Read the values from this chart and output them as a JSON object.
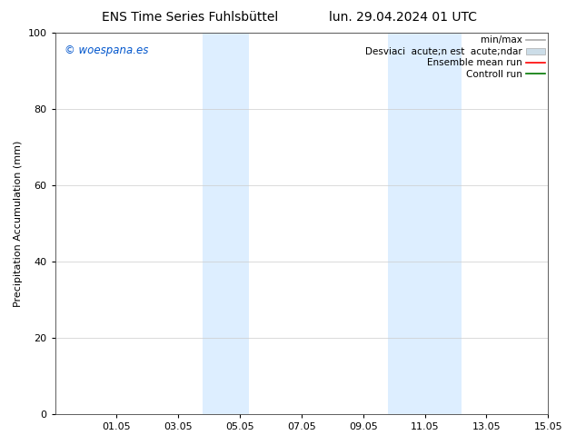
{
  "title_left": "ENS Time Series Fuhlsbüttel",
  "title_right": "lun. 29.04.2024 01 UTC",
  "ylabel": "Precipitation Accumulation (mm)",
  "watermark": "© woespana.es",
  "watermark_color": "#0055cc",
  "ylim": [
    0,
    100
  ],
  "yticks": [
    0,
    20,
    40,
    60,
    80,
    100
  ],
  "xtick_labels": [
    "01.05",
    "03.05",
    "05.05",
    "07.05",
    "09.05",
    "11.05",
    "13.05",
    "15.05"
  ],
  "xtick_positions": [
    2,
    4,
    6,
    8,
    10,
    12,
    14,
    16
  ],
  "xlim": [
    0,
    16
  ],
  "shaded_bands": [
    {
      "xmin": 4.8,
      "xmax": 6.3,
      "color": "#ddeeff"
    },
    {
      "xmin": 10.8,
      "xmax": 13.2,
      "color": "#ddeeff"
    }
  ],
  "legend_label_minmax": "min/max",
  "legend_label_desv": "Desviaci  acute;n est  acute;ndar",
  "legend_label_ensemble": "Ensemble mean run",
  "legend_label_control": "Controll run",
  "minmax_color": "#aaaaaa",
  "desv_color": "#ccdde8",
  "ensemble_color": "#ff0000",
  "control_color": "#007700",
  "background_color": "#ffffff",
  "grid_color": "#cccccc",
  "title_fontsize": 10,
  "axis_fontsize": 8,
  "tick_fontsize": 8,
  "legend_fontsize": 7.5
}
